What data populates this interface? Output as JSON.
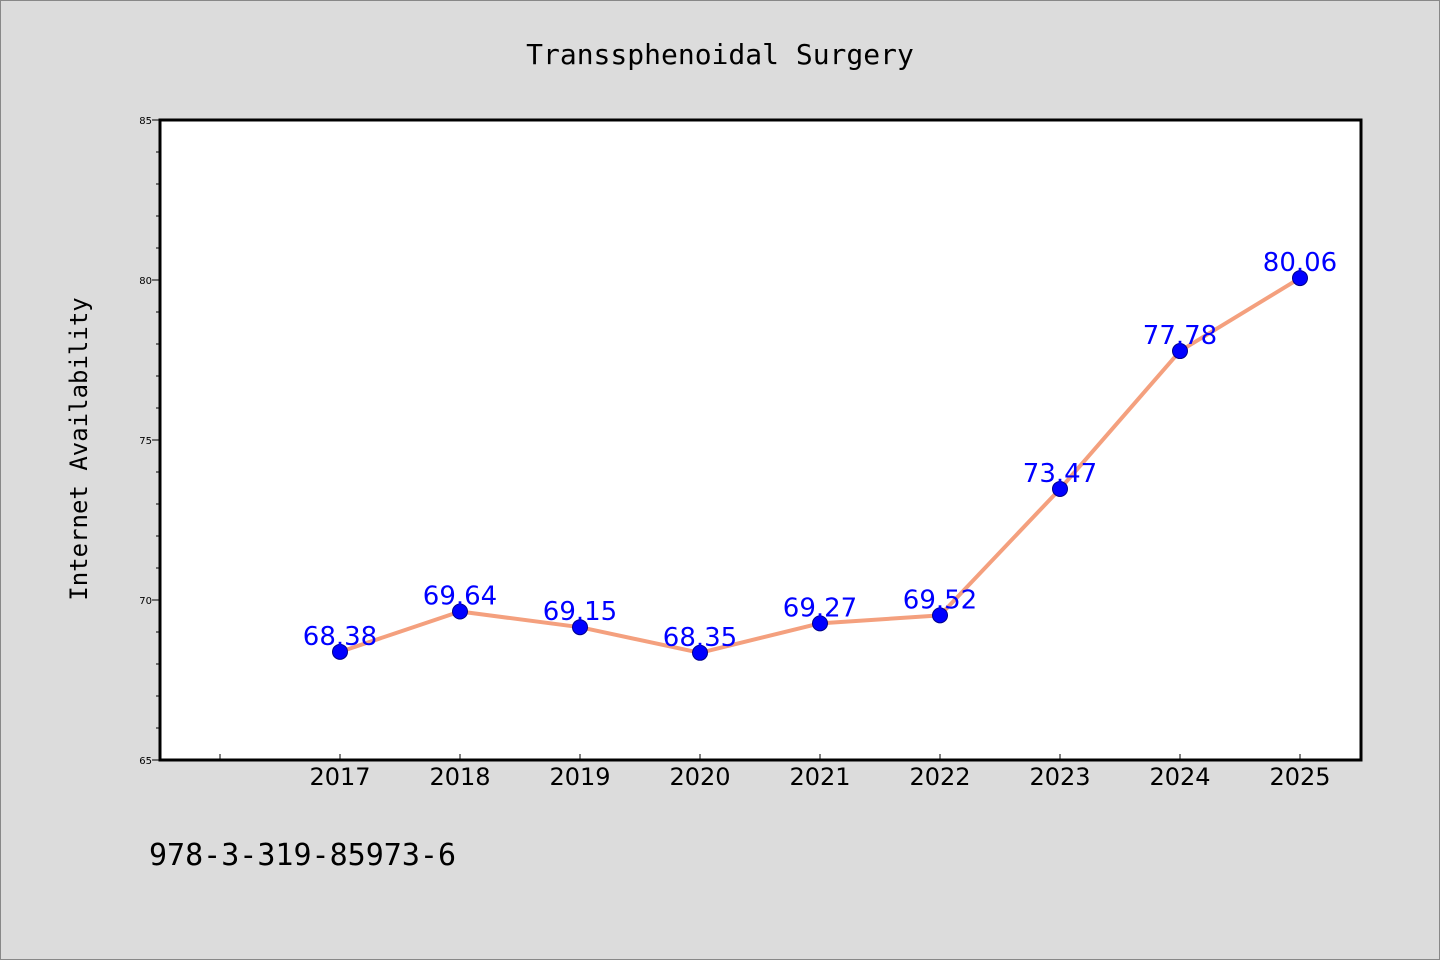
{
  "chart_data": {
    "type": "line",
    "title": "Transsphenoidal Surgery",
    "xlabel": "",
    "ylabel": "Internet Availability",
    "categories": [
      "2017",
      "2018",
      "2019",
      "2020",
      "2021",
      "2022",
      "2023",
      "2024",
      "2025"
    ],
    "series": [
      {
        "values": [
          68.38,
          69.64,
          69.15,
          68.35,
          69.27,
          69.52,
          73.47,
          77.78,
          80.06
        ],
        "labels": [
          "68.38",
          "69.64",
          "69.15",
          "68.35",
          "69.27",
          "69.52",
          "73.47",
          "77.78",
          "80.06"
        ]
      }
    ],
    "ylim": [
      65,
      85
    ],
    "yticks": [
      "65",
      "70",
      "75",
      "80",
      "85"
    ],
    "grid": false,
    "legend": "none",
    "colors": {
      "line": "#f4a07e",
      "marker_fill": "#0000ff",
      "marker_edge": "#00008b",
      "data_label": "#0000ff",
      "background": "#dcdcdc",
      "plot_background": "#ffffff"
    }
  },
  "footer": {
    "text": "978-3-319-85973-6"
  }
}
